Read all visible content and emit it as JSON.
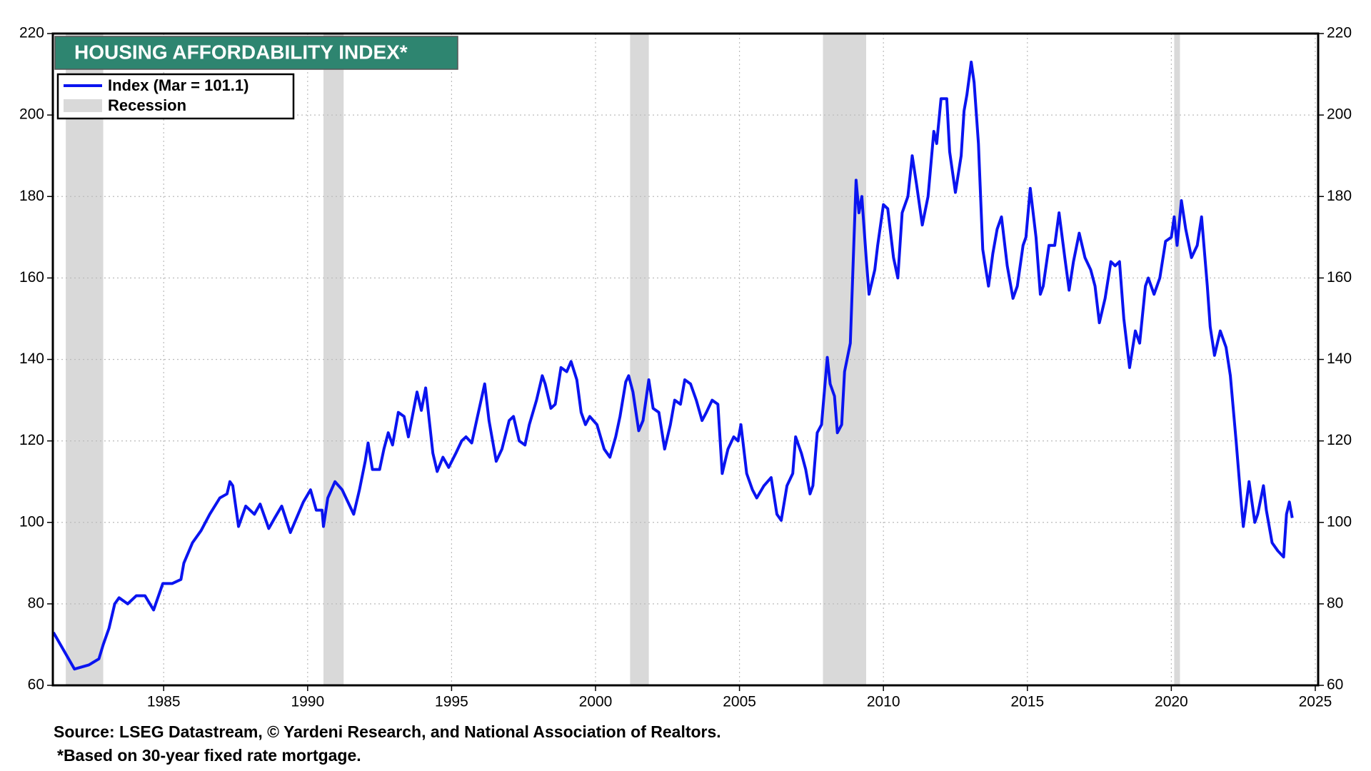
{
  "chart_data": {
    "type": "line",
    "title": "HOUSING AFFORDABILITY INDEX*",
    "source": "Source: LSEG Datastream, © Yardeni Research, and National Association of Realtors.",
    "note": "*Based on 30-year fixed rate mortgage.",
    "xlim": [
      1981.15,
      2025.1
    ],
    "xticks": [
      1985,
      1990,
      1995,
      2000,
      2005,
      2010,
      2015,
      2020,
      2025
    ],
    "ylim": [
      60,
      220
    ],
    "yticks": [
      60,
      80,
      100,
      120,
      140,
      160,
      180,
      200,
      220
    ],
    "y2lim": [
      60,
      220
    ],
    "y2ticks": [
      60,
      80,
      100,
      120,
      140,
      160,
      180,
      200,
      220
    ],
    "grid": true,
    "legend": "upper left",
    "recession": {
      "name": "Recession",
      "color": "#d9d9d9",
      "spans": [
        [
          1981.6,
          1982.9
        ],
        [
          1990.55,
          1991.25
        ],
        [
          2001.2,
          2001.85
        ],
        [
          2007.9,
          2009.4
        ],
        [
          2020.1,
          2020.3
        ]
      ]
    },
    "x": [
      1981.17,
      1981.9,
      1982.4,
      1982.75,
      1982.9,
      1983.1,
      1983.3,
      1983.45,
      1983.75,
      1984.05,
      1984.35,
      1984.65,
      1984.97,
      1985.3,
      1985.6,
      1985.7,
      1986.0,
      1986.3,
      1986.6,
      1986.95,
      1987.2,
      1987.3,
      1987.4,
      1987.6,
      1987.85,
      1988.15,
      1988.35,
      1988.65,
      1988.85,
      1989.1,
      1989.4,
      1989.85,
      1990.1,
      1990.3,
      1990.5,
      1990.55,
      1990.7,
      1990.95,
      1991.2,
      1991.4,
      1991.6,
      1991.8,
      1992.0,
      1992.1,
      1992.25,
      1992.5,
      1992.65,
      1992.8,
      1992.95,
      1993.15,
      1993.35,
      1993.5,
      1993.8,
      1993.95,
      1994.1,
      1994.35,
      1994.5,
      1994.7,
      1994.9,
      1995.15,
      1995.35,
      1995.5,
      1995.7,
      1995.9,
      1996.15,
      1996.3,
      1996.55,
      1996.75,
      1997.0,
      1997.15,
      1997.35,
      1997.55,
      1997.7,
      1997.95,
      1998.15,
      1998.25,
      1998.45,
      1998.6,
      1998.8,
      1999.0,
      1999.15,
      1999.35,
      1999.5,
      1999.65,
      1999.8,
      2000.05,
      2000.3,
      2000.5,
      2000.7,
      2000.85,
      2001.05,
      2001.15,
      2001.3,
      2001.5,
      2001.65,
      2001.85,
      2002.0,
      2002.2,
      2002.4,
      2002.6,
      2002.75,
      2002.95,
      2003.1,
      2003.3,
      2003.5,
      2003.7,
      2003.85,
      2004.05,
      2004.25,
      2004.4,
      2004.6,
      2004.8,
      2004.95,
      2005.05,
      2005.25,
      2005.45,
      2005.6,
      2005.85,
      2006.1,
      2006.3,
      2006.45,
      2006.65,
      2006.85,
      2006.95,
      2007.15,
      2007.3,
      2007.45,
      2007.55,
      2007.7,
      2007.85,
      2008.05,
      2008.15,
      2008.3,
      2008.4,
      2008.55,
      2008.65,
      2008.85,
      2009.05,
      2009.15,
      2009.25,
      2009.4,
      2009.5,
      2009.7,
      2009.8,
      2010.0,
      2010.15,
      2010.35,
      2010.5,
      2010.65,
      2010.85,
      2011.0,
      2011.15,
      2011.35,
      2011.55,
      2011.75,
      2011.85,
      2012.0,
      2012.2,
      2012.3,
      2012.5,
      2012.7,
      2012.8,
      2012.9,
      2013.05,
      2013.15,
      2013.3,
      2013.45,
      2013.65,
      2013.8,
      2013.95,
      2014.1,
      2014.3,
      2014.5,
      2014.65,
      2014.85,
      2014.95,
      2015.1,
      2015.3,
      2015.45,
      2015.55,
      2015.75,
      2015.95,
      2016.1,
      2016.3,
      2016.45,
      2016.6,
      2016.8,
      2017.0,
      2017.2,
      2017.35,
      2017.5,
      2017.7,
      2017.9,
      2018.05,
      2018.2,
      2018.35,
      2018.55,
      2018.75,
      2018.9,
      2019.1,
      2019.2,
      2019.4,
      2019.6,
      2019.8,
      2020.0,
      2020.1,
      2020.2,
      2020.35,
      2020.5,
      2020.7,
      2020.9,
      2021.05,
      2021.25,
      2021.35,
      2021.5,
      2021.7,
      2021.9,
      2022.05,
      2022.25,
      2022.4,
      2022.5,
      2022.7,
      2022.9,
      2023.0,
      2023.2,
      2023.3,
      2023.5,
      2023.7,
      2023.9,
      2024.0,
      2024.1,
      2024.2
    ],
    "series": [
      {
        "name": "Index (Mar = 101.1)",
        "color": "#0a14f0",
        "values": [
          73,
          64,
          65,
          66.5,
          70,
          74,
          80,
          81.5,
          80,
          82,
          82,
          78.5,
          85,
          85,
          86,
          90,
          95,
          98,
          102,
          106,
          107,
          110,
          109,
          99,
          104,
          102,
          104.5,
          98.5,
          101,
          104,
          97.5,
          105,
          108,
          103,
          103,
          99,
          106,
          110,
          108,
          105,
          102,
          108,
          115,
          119.5,
          113,
          113,
          118,
          122,
          119,
          127,
          126,
          121,
          132,
          127.5,
          133,
          117,
          112.5,
          116,
          113.5,
          117,
          120,
          121,
          119.5,
          126,
          134,
          125,
          115,
          118,
          125,
          126,
          120,
          119,
          124,
          130,
          136,
          134,
          128,
          129,
          138,
          137,
          139.5,
          135,
          127,
          124,
          126,
          124,
          118,
          116,
          121,
          126,
          134.5,
          136,
          132,
          122.5,
          125,
          135,
          128,
          127,
          118,
          124,
          130,
          129,
          135,
          134,
          130,
          125,
          127,
          130,
          129,
          112,
          118,
          121,
          120,
          124,
          112,
          108,
          106,
          109,
          111,
          102,
          100.5,
          109,
          112,
          121,
          117,
          113,
          107,
          109,
          122,
          124,
          140.5,
          134,
          131,
          122,
          124,
          137,
          144,
          184,
          176,
          180,
          165,
          156,
          162,
          168,
          178,
          177,
          165,
          160,
          176,
          180,
          190,
          183,
          173,
          180,
          196,
          193,
          204,
          204,
          191,
          181,
          190,
          201,
          205,
          213,
          208,
          193,
          167,
          158,
          166,
          172,
          175,
          163,
          155,
          158,
          168,
          170,
          182,
          170,
          156,
          158,
          168,
          168,
          176,
          165,
          157,
          164,
          171,
          165,
          162,
          158,
          149,
          155,
          164,
          163,
          164,
          150,
          138,
          147,
          144,
          158,
          160,
          156,
          160,
          169,
          170,
          175,
          168,
          179,
          172,
          165,
          168,
          175,
          158,
          148,
          141,
          147,
          143,
          136,
          120,
          107,
          99,
          110,
          100,
          102,
          109,
          103,
          95,
          93,
          91.5,
          102,
          105,
          101.1
        ]
      }
    ]
  }
}
